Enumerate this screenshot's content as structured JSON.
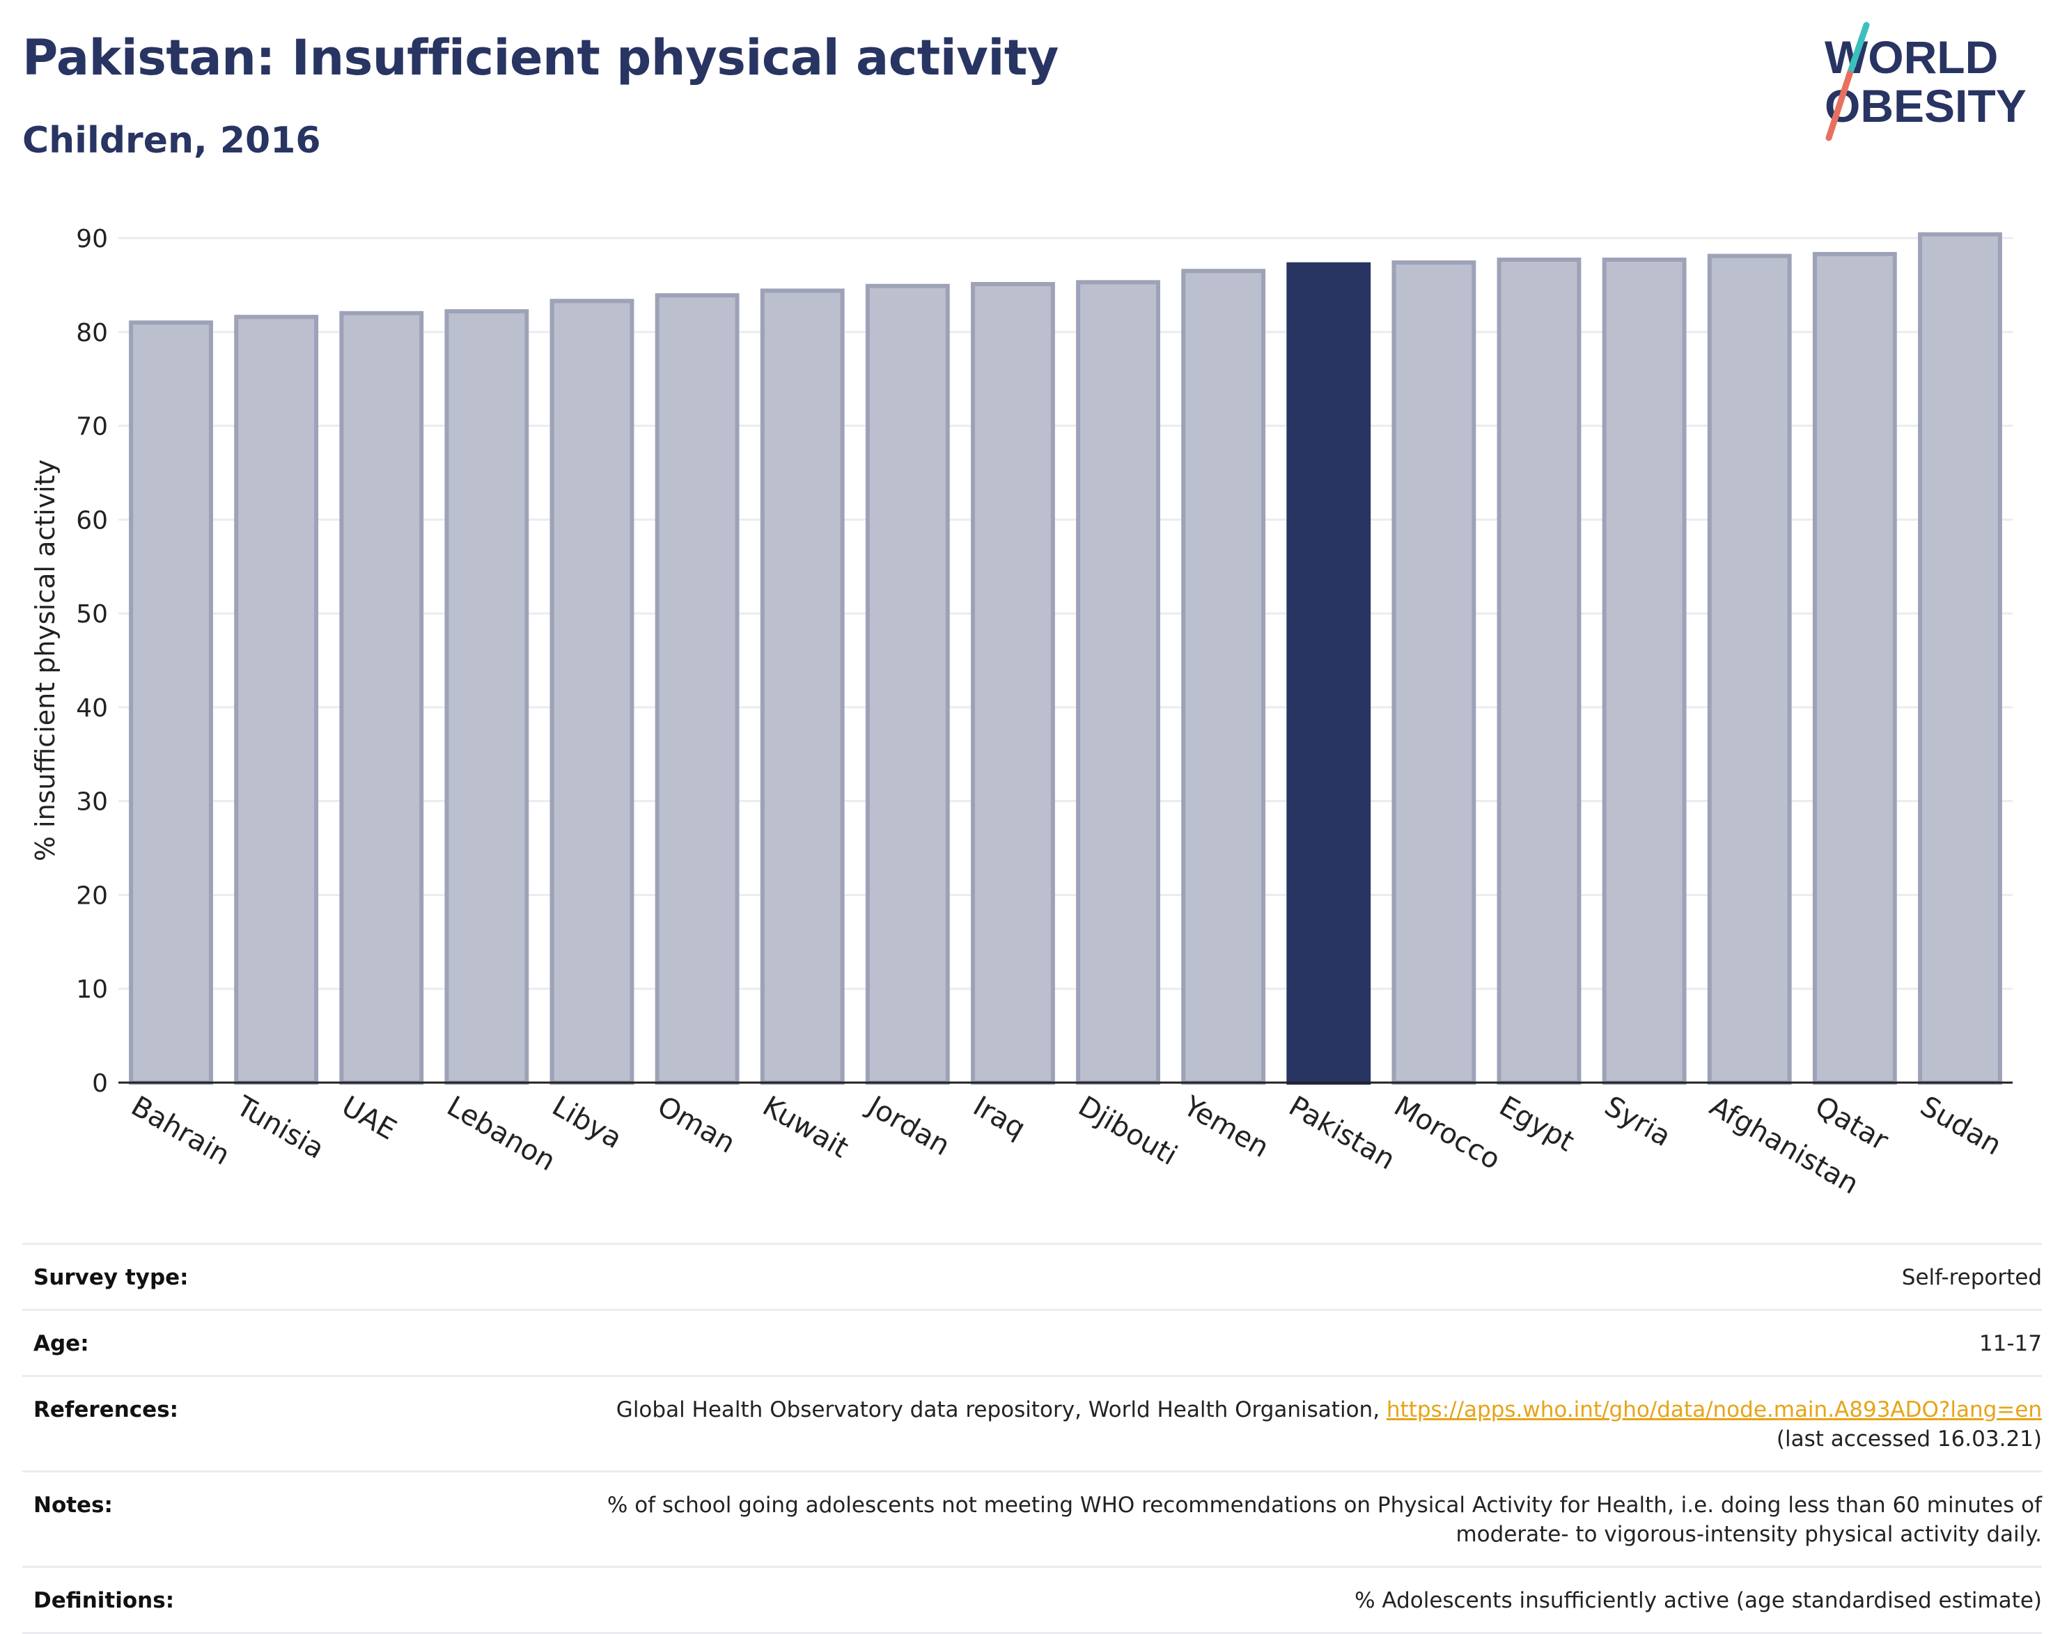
{
  "header": {
    "title": "Pakistan: Insufficient physical activity",
    "subtitle": "Children, 2016",
    "logo_line1": "WORLD",
    "logo_line2": "OBESITY"
  },
  "colors": {
    "title": "#283462",
    "bar": "#bcbfcd",
    "bar_border": "#9da2b8",
    "highlight": "#283462",
    "logo_teal": "#3cc0bd",
    "logo_coral": "#e8705f",
    "link": "#e6a417"
  },
  "chart_data": {
    "type": "bar",
    "title": "Pakistan: Insufficient physical activity",
    "subtitle": "Children, 2016",
    "ylabel": "% insufficient physical activity",
    "xlabel": "",
    "ylim": [
      0,
      90
    ],
    "yticks": [
      0,
      10,
      20,
      30,
      40,
      50,
      60,
      70,
      80,
      90
    ],
    "grid": true,
    "highlight": "Pakistan",
    "categories": [
      "Bahrain",
      "Tunisia",
      "UAE",
      "Lebanon",
      "Libya",
      "Oman",
      "Kuwait",
      "Jordan",
      "Iraq",
      "Djibouti",
      "Yemen",
      "Pakistan",
      "Morocco",
      "Egypt",
      "Syria",
      "Afghanistan",
      "Qatar",
      "Sudan"
    ],
    "values": [
      81.0,
      81.6,
      82.0,
      82.2,
      83.3,
      83.9,
      84.4,
      84.9,
      85.1,
      85.3,
      86.5,
      87.2,
      87.4,
      87.7,
      87.7,
      88.1,
      88.3,
      90.4
    ]
  },
  "metadata": {
    "rows": [
      {
        "label": "Survey type:",
        "value": "Self-reported"
      },
      {
        "label": "Age:",
        "value": "11-17"
      },
      {
        "label": "References:",
        "value": "Global Health Observatory data repository, World Health Organisation,",
        "link": "https://apps.who.int/gho/data/node.main.A893ADO?lang=en",
        "value2": "(last accessed 16.03.21)"
      },
      {
        "label": "Notes:",
        "value": "% of school going adolescents not meeting WHO recommendations on Physical Activity for Health, i.e. doing less than 60 minutes of",
        "value2": "moderate- to vigorous-intensity physical activity daily."
      },
      {
        "label": "Definitions:",
        "value": "% Adolescents insufficiently active (age standardised estimate)"
      }
    ]
  }
}
